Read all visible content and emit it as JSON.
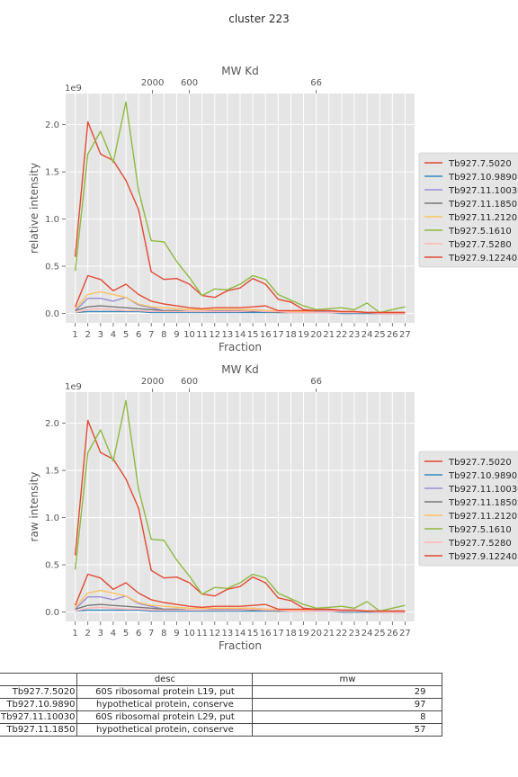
{
  "suptitle": "cluster 223",
  "chart_data": [
    {
      "type": "line",
      "title": "MW Kd",
      "xlabel": "Fraction",
      "ylabel": "relative intensity",
      "y_scale_label": "1e9",
      "x": [
        1,
        2,
        3,
        4,
        5,
        6,
        7,
        8,
        9,
        10,
        11,
        12,
        13,
        14,
        15,
        16,
        17,
        18,
        19,
        20,
        21,
        22,
        23,
        24,
        25,
        26,
        27
      ],
      "xlim": [
        0.25,
        27.75
      ],
      "ylim": [
        -0.1,
        2.33
      ],
      "yticks": [
        0.0,
        0.5,
        1.0,
        1.5,
        2.0
      ],
      "ytick_labels": [
        "0.0",
        "0.5",
        "1.0",
        "1.5",
        "2.0"
      ],
      "top_ticks": [
        {
          "x": 7.1,
          "label": "2000"
        },
        {
          "x": 10.0,
          "label": "600"
        },
        {
          "x": 20.0,
          "label": "66"
        }
      ],
      "grid": true,
      "legend_position": "right",
      "series": [
        {
          "name": "Tb927.7.5020",
          "color": "#e24a33",
          "values": [
            0.6,
            2.03,
            1.69,
            1.62,
            1.41,
            1.1,
            0.44,
            0.36,
            0.37,
            0.31,
            0.19,
            0.17,
            0.24,
            0.27,
            0.37,
            0.31,
            0.15,
            0.12,
            0.04,
            0.03,
            0.03,
            0.02,
            0.02,
            0.01,
            0.01,
            0.01,
            0.01
          ]
        },
        {
          "name": "Tb927.10.9890",
          "color": "#348abd",
          "values": [
            0.01,
            0.02,
            0.02,
            0.02,
            0.02,
            0.02,
            0.01,
            0.01,
            0.01,
            0.01,
            0.01,
            0.01,
            0.01,
            0.01,
            0.01,
            0.01,
            0.01,
            0.01,
            0.01,
            0.01,
            0.01,
            0.0,
            0.0,
            0.0,
            0.0,
            0.0,
            0.0
          ]
        },
        {
          "name": "Tb927.11.10030",
          "color": "#988ed5",
          "values": [
            0.03,
            0.16,
            0.16,
            0.13,
            0.17,
            0.09,
            0.06,
            0.03,
            0.03,
            0.02,
            0.02,
            0.03,
            0.03,
            0.03,
            0.04,
            0.03,
            0.02,
            0.02,
            0.02,
            0.02,
            0.02,
            0.02,
            0.01,
            0.01,
            0.01,
            0.01,
            0.01
          ]
        },
        {
          "name": "Tb927.11.1850",
          "color": "#777777",
          "values": [
            0.03,
            0.07,
            0.08,
            0.07,
            0.06,
            0.05,
            0.04,
            0.03,
            0.03,
            0.02,
            0.02,
            0.02,
            0.02,
            0.02,
            0.02,
            0.02,
            0.01,
            0.01,
            0.01,
            0.01,
            0.01,
            0.01,
            0.01,
            0.01,
            0.0,
            0.0,
            0.0
          ]
        },
        {
          "name": "Tb927.11.2120",
          "color": "#fbc15e",
          "values": [
            0.05,
            0.2,
            0.23,
            0.2,
            0.17,
            0.1,
            0.07,
            0.06,
            0.05,
            0.04,
            0.04,
            0.04,
            0.04,
            0.04,
            0.04,
            0.03,
            0.03,
            0.02,
            0.02,
            0.03,
            0.03,
            0.02,
            0.02,
            0.01,
            0.01,
            0.01,
            0.01
          ]
        },
        {
          "name": "Tb927.5.1610",
          "color": "#8eba42",
          "values": [
            0.45,
            1.69,
            1.93,
            1.6,
            2.24,
            1.3,
            0.77,
            0.76,
            0.55,
            0.38,
            0.19,
            0.26,
            0.25,
            0.31,
            0.4,
            0.36,
            0.2,
            0.14,
            0.08,
            0.04,
            0.05,
            0.06,
            0.04,
            0.11,
            0.01,
            0.04,
            0.07
          ]
        },
        {
          "name": "Tb927.7.5280",
          "color": "#ffb5b8",
          "values": [
            0.01,
            0.04,
            0.05,
            0.04,
            0.03,
            0.03,
            0.02,
            0.02,
            0.02,
            0.02,
            0.02,
            0.02,
            0.02,
            0.02,
            0.03,
            0.02,
            0.02,
            0.01,
            0.01,
            0.01,
            0.01,
            0.01,
            0.01,
            0.01,
            0.0,
            0.0,
            0.0
          ]
        },
        {
          "name": "Tb927.9.12240",
          "color": "#e24a33",
          "values": [
            0.07,
            0.4,
            0.36,
            0.24,
            0.31,
            0.2,
            0.13,
            0.1,
            0.08,
            0.06,
            0.05,
            0.06,
            0.06,
            0.06,
            0.07,
            0.08,
            0.03,
            0.03,
            0.03,
            0.03,
            0.03,
            0.02,
            0.02,
            0.01,
            0.01,
            0.01,
            0.01
          ]
        }
      ]
    },
    {
      "type": "line",
      "title": "MW Kd",
      "xlabel": "Fraction",
      "ylabel": "raw intensity",
      "y_scale_label": "1e9",
      "x": [
        1,
        2,
        3,
        4,
        5,
        6,
        7,
        8,
        9,
        10,
        11,
        12,
        13,
        14,
        15,
        16,
        17,
        18,
        19,
        20,
        21,
        22,
        23,
        24,
        25,
        26,
        27
      ],
      "xlim": [
        0.25,
        27.75
      ],
      "ylim": [
        -0.1,
        2.33
      ],
      "yticks": [
        0.0,
        0.5,
        1.0,
        1.5,
        2.0
      ],
      "ytick_labels": [
        "0.0",
        "0.5",
        "1.0",
        "1.5",
        "2.0"
      ],
      "top_ticks": [
        {
          "x": 7.1,
          "label": "2000"
        },
        {
          "x": 10.0,
          "label": "600"
        },
        {
          "x": 20.0,
          "label": "66"
        }
      ],
      "grid": true,
      "legend_position": "right",
      "series": [
        {
          "name": "Tb927.7.5020",
          "color": "#e24a33",
          "values": [
            0.6,
            2.03,
            1.69,
            1.62,
            1.41,
            1.1,
            0.44,
            0.36,
            0.37,
            0.31,
            0.19,
            0.17,
            0.24,
            0.27,
            0.37,
            0.31,
            0.15,
            0.12,
            0.04,
            0.03,
            0.03,
            0.02,
            0.02,
            0.01,
            0.01,
            0.01,
            0.01
          ]
        },
        {
          "name": "Tb927.10.9890",
          "color": "#348abd",
          "values": [
            0.01,
            0.02,
            0.02,
            0.02,
            0.02,
            0.02,
            0.01,
            0.01,
            0.01,
            0.01,
            0.01,
            0.01,
            0.01,
            0.01,
            0.01,
            0.01,
            0.01,
            0.01,
            0.01,
            0.01,
            0.01,
            0.0,
            0.0,
            0.0,
            0.0,
            0.0,
            0.0
          ]
        },
        {
          "name": "Tb927.11.10030",
          "color": "#988ed5",
          "values": [
            0.03,
            0.16,
            0.16,
            0.13,
            0.17,
            0.09,
            0.06,
            0.03,
            0.03,
            0.02,
            0.02,
            0.03,
            0.03,
            0.03,
            0.04,
            0.03,
            0.02,
            0.02,
            0.02,
            0.02,
            0.02,
            0.02,
            0.01,
            0.01,
            0.01,
            0.01,
            0.01
          ]
        },
        {
          "name": "Tb927.11.1850",
          "color": "#777777",
          "values": [
            0.03,
            0.07,
            0.08,
            0.07,
            0.06,
            0.05,
            0.04,
            0.03,
            0.03,
            0.02,
            0.02,
            0.02,
            0.02,
            0.02,
            0.02,
            0.02,
            0.01,
            0.01,
            0.01,
            0.01,
            0.01,
            0.01,
            0.01,
            0.01,
            0.0,
            0.0,
            0.0
          ]
        },
        {
          "name": "Tb927.11.2120",
          "color": "#fbc15e",
          "values": [
            0.05,
            0.2,
            0.23,
            0.2,
            0.17,
            0.1,
            0.07,
            0.06,
            0.05,
            0.04,
            0.04,
            0.04,
            0.04,
            0.04,
            0.04,
            0.03,
            0.03,
            0.02,
            0.02,
            0.03,
            0.03,
            0.02,
            0.02,
            0.01,
            0.01,
            0.01,
            0.01
          ]
        },
        {
          "name": "Tb927.5.1610",
          "color": "#8eba42",
          "values": [
            0.45,
            1.69,
            1.93,
            1.6,
            2.24,
            1.3,
            0.77,
            0.76,
            0.55,
            0.38,
            0.19,
            0.26,
            0.25,
            0.31,
            0.4,
            0.36,
            0.2,
            0.14,
            0.08,
            0.04,
            0.05,
            0.06,
            0.04,
            0.11,
            0.01,
            0.04,
            0.07
          ]
        },
        {
          "name": "Tb927.7.5280",
          "color": "#ffb5b8",
          "values": [
            0.01,
            0.04,
            0.05,
            0.04,
            0.03,
            0.03,
            0.02,
            0.02,
            0.02,
            0.02,
            0.02,
            0.02,
            0.02,
            0.02,
            0.03,
            0.02,
            0.02,
            0.01,
            0.01,
            0.01,
            0.01,
            0.01,
            0.01,
            0.01,
            0.0,
            0.0,
            0.0
          ]
        },
        {
          "name": "Tb927.9.12240",
          "color": "#e24a33",
          "values": [
            0.07,
            0.4,
            0.36,
            0.24,
            0.31,
            0.2,
            0.13,
            0.1,
            0.08,
            0.06,
            0.05,
            0.06,
            0.06,
            0.06,
            0.07,
            0.08,
            0.03,
            0.03,
            0.03,
            0.03,
            0.03,
            0.02,
            0.02,
            0.01,
            0.01,
            0.01,
            0.01
          ]
        }
      ]
    }
  ],
  "table": {
    "headers": [
      "",
      "desc",
      "mw"
    ],
    "rows": [
      [
        "Tb927.7.5020",
        "60S ribosomal protein L19, put",
        "29"
      ],
      [
        "Tb927.10.9890",
        "hypothetical protein, conserve",
        "97"
      ],
      [
        "Tb927.11.10030",
        "60S ribosomal protein L29, put",
        "8"
      ],
      [
        "Tb927.11.1850",
        "hypothetical protein, conserve",
        "57"
      ]
    ]
  }
}
